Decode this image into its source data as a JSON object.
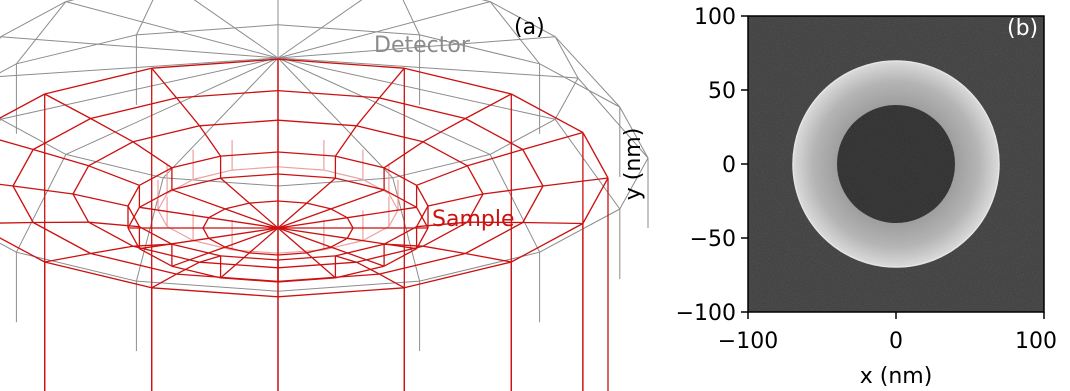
{
  "panel_a": {
    "label": "(a)",
    "detector_label": "Detector",
    "sample_label": "Sample",
    "colors": {
      "detector": "#8c8c8c",
      "sample": "#cc1111",
      "sample_inner": "#eea0a0"
    }
  },
  "panel_b": {
    "label": "(b)",
    "xlabel": "x (nm)",
    "ylabel": "y (nm)",
    "xlim": [
      -100,
      100
    ],
    "ylim": [
      -100,
      100
    ],
    "xticks": [
      "−100",
      "0",
      "100"
    ],
    "yticks": [
      "100",
      "50",
      "0",
      "−50",
      "−100"
    ],
    "image": {
      "ring_outer_radius_nm": 70,
      "ring_inner_radius_nm": 40
    }
  },
  "chart_data": {
    "type": "heatmap",
    "title": "",
    "xlabel": "x (nm)",
    "ylabel": "y (nm)",
    "xlim": [
      -100,
      100
    ],
    "ylim": [
      -100,
      100
    ],
    "x_ticks": [
      -100,
      0,
      100
    ],
    "y_ticks": [
      -100,
      -50,
      0,
      50,
      100
    ],
    "annular_feature": {
      "center": [
        0,
        0
      ],
      "inner_radius": 40,
      "outer_radius": 70
    }
  }
}
